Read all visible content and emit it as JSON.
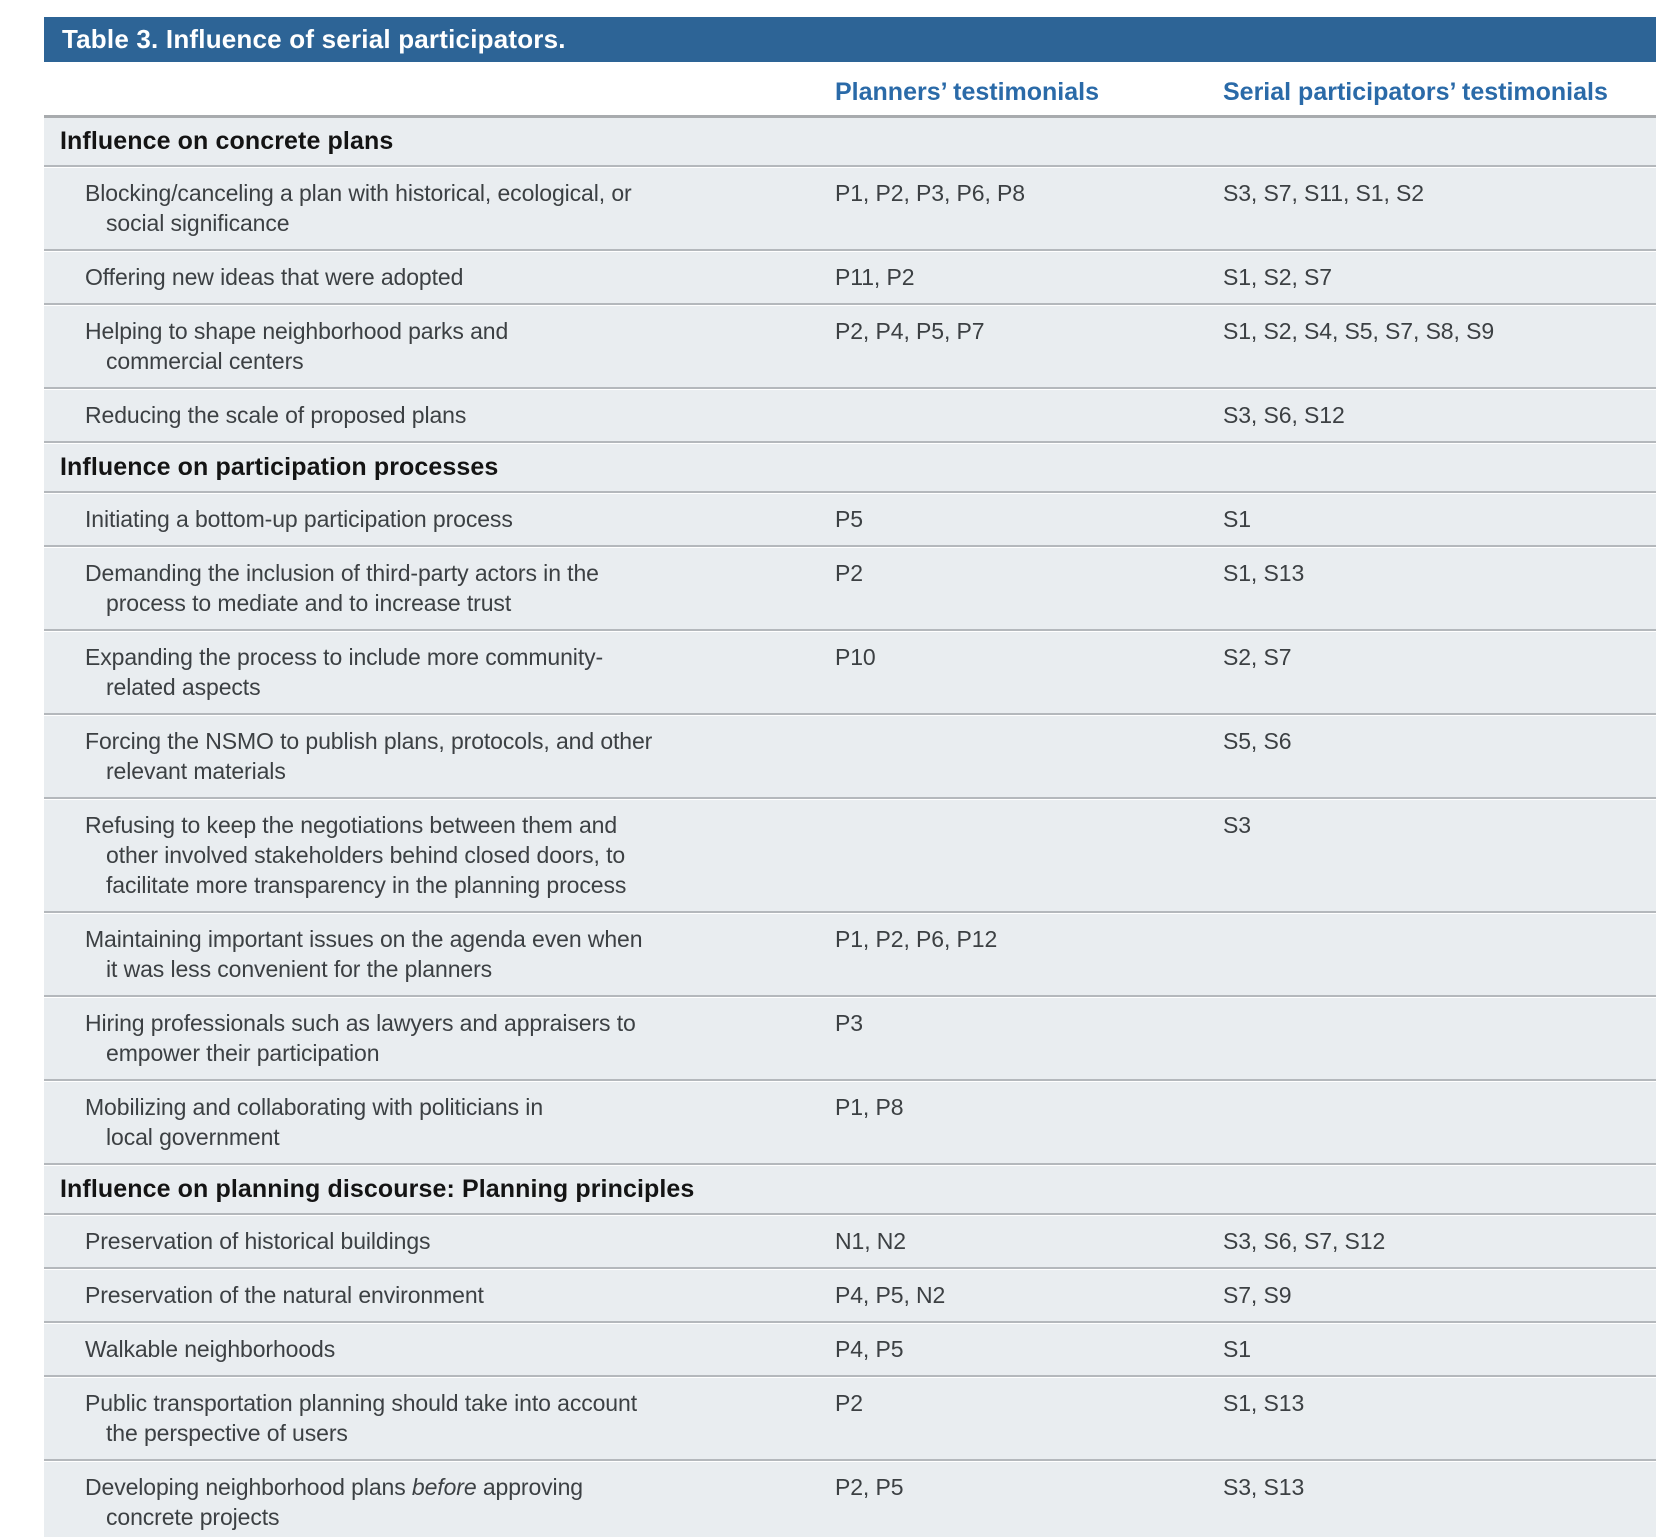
{
  "table": {
    "title": "Table 3. Influence of serial participators.",
    "columns": {
      "planners": "Planners’ testimonials",
      "serial": "Serial participators’ testimonials"
    },
    "colors": {
      "title_bar_bg": "#2d6496",
      "title_text": "#ffffff",
      "column_header_text": "#2a6aa8",
      "row_bg": "#e9edf0",
      "header_rule": "#a8abae",
      "row_divider": "#b4b8bc",
      "body_text": "#3c4043"
    },
    "rows": [
      {
        "type": "section",
        "label": "Influence on concrete plans"
      },
      {
        "type": "item",
        "parts": [
          {
            "text": "Blocking/canceling a plan with historical, ecological, or\nsocial significance",
            "italic": false
          }
        ],
        "planners": "P1, P2, P3, P6, P8",
        "serial": "S3, S7, S11, S1, S2"
      },
      {
        "type": "item",
        "parts": [
          {
            "text": "Offering new ideas that were adopted",
            "italic": false
          }
        ],
        "planners": "P11, P2",
        "serial": "S1, S2, S7"
      },
      {
        "type": "item",
        "parts": [
          {
            "text": "Helping to shape neighborhood parks and\ncommercial centers",
            "italic": false
          }
        ],
        "planners": "P2, P4, P5, P7",
        "serial": "S1, S2, S4, S5, S7, S8, S9"
      },
      {
        "type": "item",
        "parts": [
          {
            "text": "Reducing the scale of proposed plans",
            "italic": false
          }
        ],
        "planners": "",
        "serial": "S3, S6, S12"
      },
      {
        "type": "section",
        "label": "Influence on participation processes"
      },
      {
        "type": "item",
        "parts": [
          {
            "text": "Initiating a bottom-up participation process",
            "italic": false
          }
        ],
        "planners": "P5",
        "serial": "S1"
      },
      {
        "type": "item",
        "parts": [
          {
            "text": "Demanding the inclusion of third-party actors in the\nprocess to mediate and to increase trust",
            "italic": false
          }
        ],
        "planners": "P2",
        "serial": "S1, S13"
      },
      {
        "type": "item",
        "parts": [
          {
            "text": "Expanding the process to include more community-\nrelated aspects",
            "italic": false
          }
        ],
        "planners": "P10",
        "serial": "S2, S7"
      },
      {
        "type": "item",
        "parts": [
          {
            "text": "Forcing the NSMO to publish plans, protocols, and other\nrelevant materials",
            "italic": false
          }
        ],
        "planners": "",
        "serial": "S5, S6"
      },
      {
        "type": "item",
        "parts": [
          {
            "text": "Refusing to keep the negotiations between them and\nother involved stakeholders behind closed doors, to\nfacilitate more transparency in the planning process",
            "italic": false
          }
        ],
        "planners": "",
        "serial": "S3"
      },
      {
        "type": "item",
        "parts": [
          {
            "text": "Maintaining important issues on the agenda even when\nit was less convenient for the planners",
            "italic": false
          }
        ],
        "planners": "P1, P2, P6, P12",
        "serial": ""
      },
      {
        "type": "item",
        "parts": [
          {
            "text": "Hiring professionals such as lawyers and appraisers to\nempower their participation",
            "italic": false
          }
        ],
        "planners": "P3",
        "serial": ""
      },
      {
        "type": "item",
        "parts": [
          {
            "text": "Mobilizing and collaborating with politicians in\nlocal government",
            "italic": false
          }
        ],
        "planners": "P1, P8",
        "serial": ""
      },
      {
        "type": "section",
        "label": "Influence on planning discourse: Planning principles"
      },
      {
        "type": "item",
        "parts": [
          {
            "text": "Preservation of historical buildings",
            "italic": false
          }
        ],
        "planners": "N1, N2",
        "serial": "S3, S6, S7, S12"
      },
      {
        "type": "item",
        "parts": [
          {
            "text": "Preservation of the natural environment",
            "italic": false
          }
        ],
        "planners": "P4, P5, N2",
        "serial": "S7, S9"
      },
      {
        "type": "item",
        "parts": [
          {
            "text": "Walkable neighborhoods",
            "italic": false
          }
        ],
        "planners": "P4, P5",
        "serial": "S1"
      },
      {
        "type": "item",
        "parts": [
          {
            "text": "Public transportation planning should take into account\nthe perspective of users",
            "italic": false
          }
        ],
        "planners": "P2",
        "serial": "S1, S13"
      },
      {
        "type": "item",
        "parts": [
          {
            "text": "Developing neighborhood plans ",
            "italic": false
          },
          {
            "text": "before",
            "italic": true
          },
          {
            "text": " approving\nconcrete projects",
            "italic": false
          }
        ],
        "planners": "P2, P5",
        "serial": "S3, S13"
      }
    ]
  }
}
